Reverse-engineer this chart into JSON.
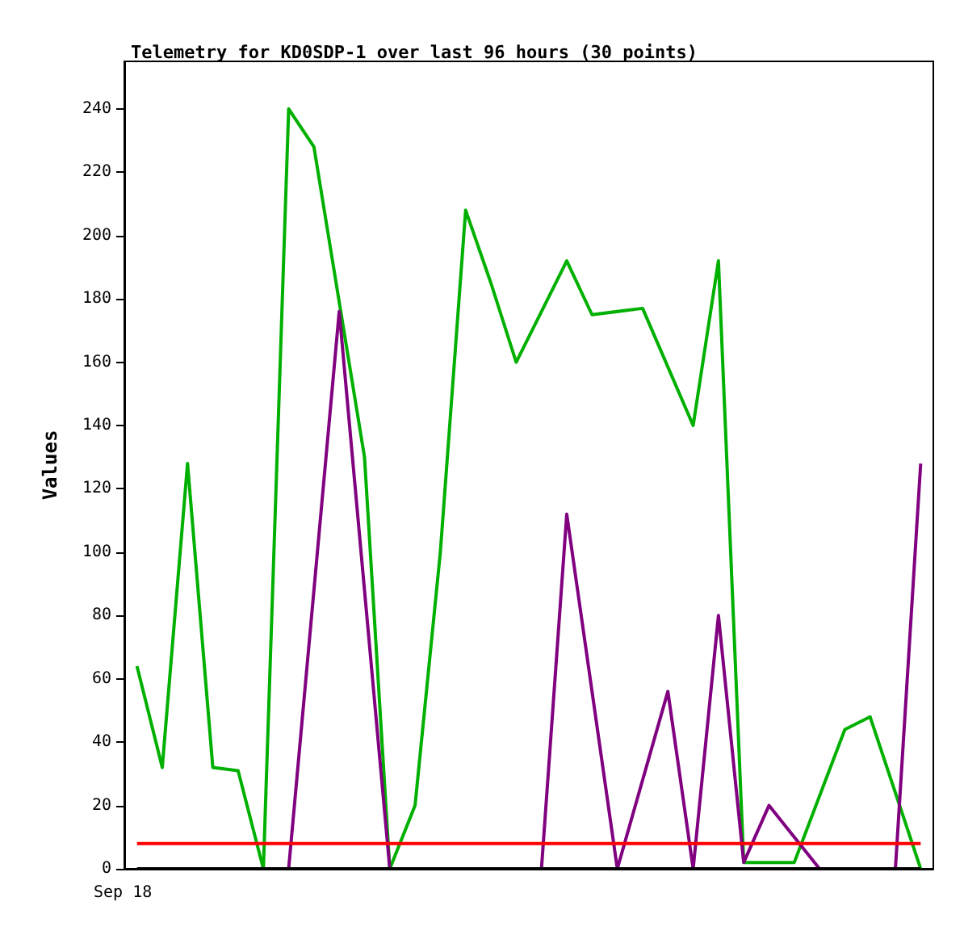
{
  "chart_data": {
    "type": "line",
    "title": "Telemetry for KD0SDP-1 over last 96 hours (30 points)",
    "ylabel": "Values",
    "annotations": [
      "Sep 18"
    ],
    "categories": [
      null,
      null,
      null,
      null,
      null,
      null,
      null,
      null,
      null,
      null,
      null,
      null,
      null,
      null,
      null,
      null,
      null,
      null,
      null,
      null,
      null,
      null,
      null,
      null,
      null,
      null,
      null,
      null,
      null,
      null,
      null,
      null
    ],
    "ylim": [
      0,
      255
    ],
    "yticks": [
      0,
      20,
      40,
      60,
      80,
      100,
      120,
      140,
      160,
      180,
      200,
      220,
      240
    ],
    "marker": "none",
    "series": [
      {
        "color": "#00b000",
        "values": [
          64,
          32,
          128,
          32,
          31,
          0,
          240,
          228,
          null,
          130,
          0,
          20,
          100,
          208,
          185,
          160,
          null,
          192,
          175,
          null,
          177,
          null,
          140,
          192,
          2,
          null,
          2,
          null,
          44,
          48,
          null,
          0
        ]
      },
      {
        "color": "#800080",
        "values": [
          null,
          null,
          null,
          null,
          null,
          null,
          0,
          null,
          176,
          null,
          0,
          null,
          null,
          null,
          null,
          null,
          0,
          112,
          56,
          0,
          null,
          56,
          0,
          80,
          2,
          20,
          null,
          0,
          null,
          null,
          0,
          128
        ]
      },
      {
        "color": "#ff0000",
        "values": [
          8,
          null,
          null,
          null,
          null,
          null,
          null,
          null,
          null,
          null,
          null,
          null,
          null,
          null,
          null,
          null,
          null,
          null,
          null,
          null,
          null,
          null,
          null,
          null,
          null,
          null,
          null,
          null,
          null,
          null,
          null,
          8
        ]
      },
      {
        "color": "#000000",
        "values": [
          0,
          null,
          null,
          null,
          null,
          null,
          null,
          null,
          null,
          null,
          null,
          null,
          null,
          null,
          null,
          null,
          null,
          null,
          null,
          null,
          null,
          null,
          null,
          null,
          null,
          null,
          null,
          null,
          null,
          null,
          null,
          0
        ]
      }
    ]
  }
}
